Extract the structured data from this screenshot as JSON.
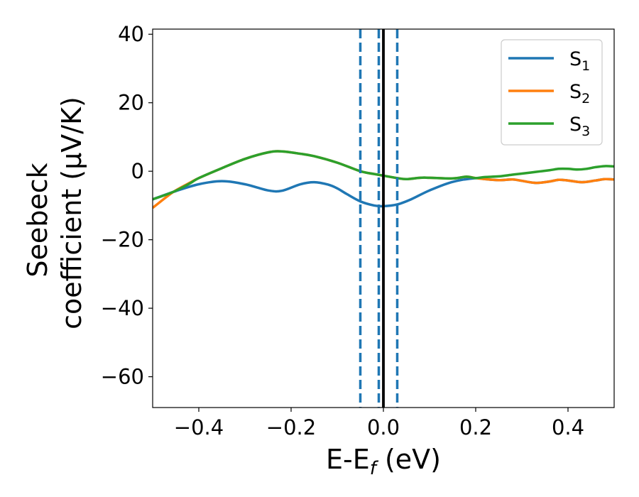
{
  "chart_data": {
    "type": "line",
    "title": "",
    "xlabel": {
      "prefix": "E-E",
      "sub": "f",
      "suffix": " (eV)"
    },
    "ylabel": {
      "line1": "Seebeck",
      "line2": "coefficient  (μV/K)"
    },
    "xlim": [
      -0.5,
      0.5
    ],
    "ylim": [
      -69,
      41.5
    ],
    "xticks": [
      -0.4,
      -0.2,
      0.0,
      0.2,
      0.4
    ],
    "xtick_labels": [
      "−0.4",
      "−0.2",
      "0.0",
      "0.2",
      "0.4"
    ],
    "yticks": [
      -60,
      -40,
      -20,
      0,
      20,
      40
    ],
    "ytick_labels": [
      "−60",
      "−40",
      "−20",
      "0",
      "20",
      "40"
    ],
    "grid": false,
    "legend_position": "top-right",
    "vlines": [
      {
        "x": -0.05,
        "style": "dashed",
        "color": "#1f77b4"
      },
      {
        "x": -0.01,
        "style": "dashed",
        "color": "#1f77b4"
      },
      {
        "x": 0.03,
        "style": "dashed",
        "color": "#1f77b4"
      },
      {
        "x": 0.0,
        "style": "solid",
        "color": "#000000"
      }
    ],
    "series": [
      {
        "name": "S",
        "sub": "1",
        "color": "#1f77b4",
        "x": [
          -0.5,
          -0.45,
          -0.4,
          -0.35,
          -0.3,
          -0.25,
          -0.22,
          -0.18,
          -0.15,
          -0.12,
          -0.1,
          -0.08,
          -0.05,
          -0.02,
          0.0,
          0.03,
          0.06,
          0.1,
          0.15,
          0.2,
          0.22,
          0.25,
          0.28,
          0.3,
          0.33,
          0.36,
          0.38,
          0.4,
          0.43,
          0.46,
          0.48,
          0.5
        ],
        "y": [
          -8.2,
          -5.8,
          -3.8,
          -2.9,
          -3.8,
          -5.6,
          -5.7,
          -3.8,
          -3.2,
          -3.9,
          -5.0,
          -6.6,
          -8.8,
          -10.0,
          -10.2,
          -9.7,
          -8.2,
          -5.6,
          -3.1,
          -2.0,
          -2.3,
          -2.6,
          -2.4,
          -2.8,
          -3.4,
          -3.0,
          -2.5,
          -2.7,
          -3.2,
          -2.7,
          -2.3,
          -2.4
        ]
      },
      {
        "name": "S",
        "sub": "2",
        "color": "#ff7f0e",
        "x": [
          -0.5,
          -0.47,
          -0.45,
          -0.42,
          -0.4,
          -0.35,
          -0.3,
          -0.25,
          -0.22,
          -0.18,
          -0.15,
          -0.1,
          -0.05,
          -0.02,
          0.0,
          0.03,
          0.05,
          0.08,
          0.1,
          0.15,
          0.18,
          0.2,
          0.22,
          0.25,
          0.28,
          0.3,
          0.33,
          0.36,
          0.38,
          0.4,
          0.43,
          0.46,
          0.48,
          0.5
        ],
        "y": [
          -10.7,
          -7.5,
          -5.6,
          -3.4,
          -2.0,
          0.9,
          3.6,
          5.5,
          5.8,
          5.1,
          4.4,
          2.5,
          0.0,
          -0.8,
          -1.3,
          -2.0,
          -2.3,
          -1.9,
          -1.9,
          -2.1,
          -1.6,
          -2.0,
          -2.3,
          -2.6,
          -2.4,
          -2.8,
          -3.4,
          -3.0,
          -2.5,
          -2.7,
          -3.2,
          -2.7,
          -2.3,
          -2.4
        ]
      },
      {
        "name": "S",
        "sub": "3",
        "color": "#2ca02c",
        "x": [
          -0.5,
          -0.47,
          -0.45,
          -0.42,
          -0.4,
          -0.35,
          -0.3,
          -0.25,
          -0.22,
          -0.18,
          -0.15,
          -0.1,
          -0.05,
          -0.02,
          0.0,
          0.03,
          0.05,
          0.08,
          0.1,
          0.15,
          0.18,
          0.2,
          0.22,
          0.25,
          0.28,
          0.3,
          0.33,
          0.36,
          0.38,
          0.4,
          0.42,
          0.44,
          0.46,
          0.48,
          0.5
        ],
        "y": [
          -8.2,
          -6.8,
          -5.7,
          -3.6,
          -2.0,
          0.9,
          3.6,
          5.5,
          5.8,
          5.1,
          4.4,
          2.5,
          0.0,
          -0.8,
          -1.3,
          -2.0,
          -2.3,
          -1.9,
          -1.9,
          -2.1,
          -1.6,
          -2.0,
          -1.7,
          -1.5,
          -1.0,
          -0.7,
          -0.2,
          0.3,
          0.7,
          0.7,
          0.5,
          0.7,
          1.2,
          1.5,
          1.4
        ]
      }
    ]
  }
}
